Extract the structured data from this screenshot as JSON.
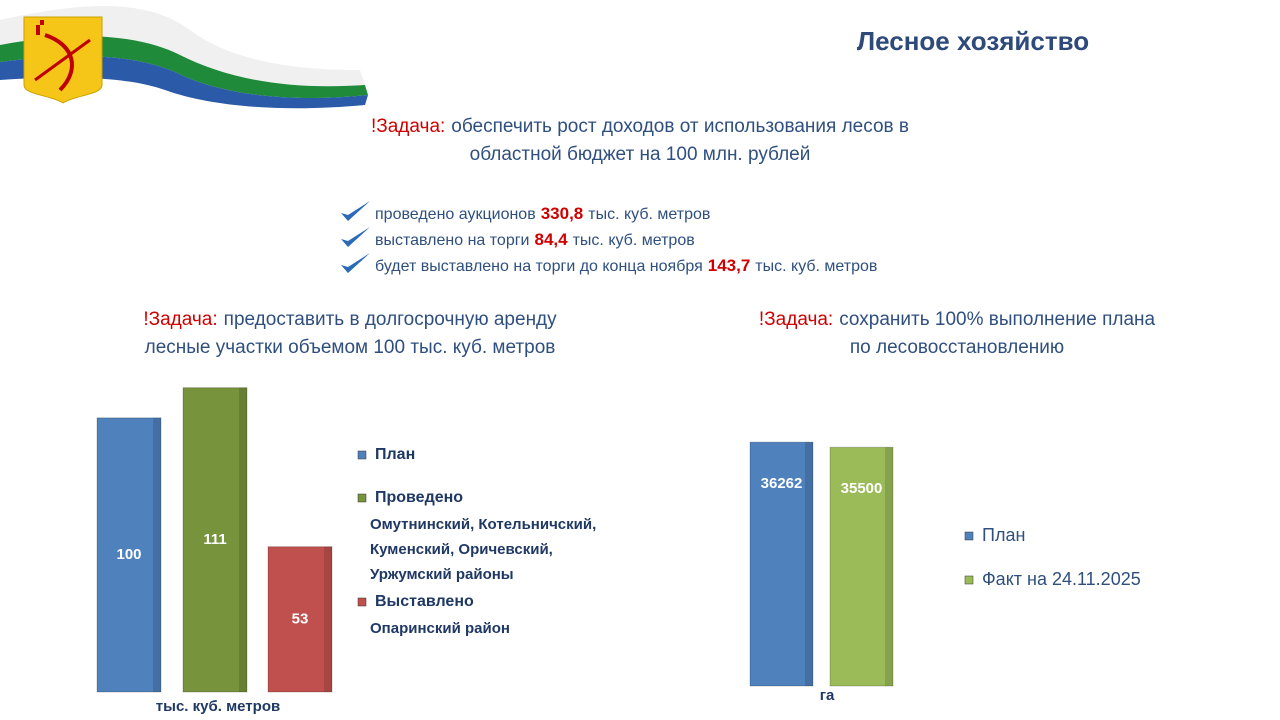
{
  "header": {
    "title": "Лесное хозяйство"
  },
  "tasks": [
    {
      "label": "!Задача:",
      "lines": [
        "обеспечить рост доходов от использования лесов в",
        "областной бюджет на 100 млн. рублей"
      ]
    },
    {
      "label": "!Задача:",
      "lines": [
        "предоставить в долгосрочную аренду",
        "лесные участки объемом 100 тыс. куб. метров"
      ]
    },
    {
      "label": "!Задача:",
      "lines": [
        "сохранить 100% выполнение плана",
        "по лесовосстановлению"
      ]
    }
  ],
  "results": [
    {
      "text": "проведено аукционов",
      "amount": "330,8",
      "unit": "тыс. куб. метров"
    },
    {
      "text": "выставлено на торги",
      "amount": "84,4",
      "unit": "тыс. куб. метров"
    },
    {
      "text": "будет выставлено на торги до конца ноября",
      "amount": "143,7",
      "unit": "тыс. куб. метров"
    }
  ],
  "chart_data": [
    {
      "type": "bar",
      "x_label": "тыс. куб. метров",
      "ylim": [
        0,
        120
      ],
      "series": [
        {
          "name": "План",
          "color": "#4f81bd",
          "values": [
            100
          ]
        },
        {
          "name": "Проведено",
          "color": "#77933c",
          "values": [
            111
          ],
          "note": [
            "Омутнинский, Котельничский,",
            "Куменский, Оричевский,",
            "Уржумский районы"
          ]
        },
        {
          "name": "Выставлено",
          "color": "#c0504d",
          "values": [
            53
          ],
          "note": [
            "Опаринский район"
          ]
        }
      ]
    },
    {
      "type": "bar",
      "x_label": "га",
      "ylim": [
        0,
        40000
      ],
      "series": [
        {
          "name": "План",
          "color": "#4f81bd",
          "values": [
            36262
          ]
        },
        {
          "name": "Факт на 24.11.2025",
          "color": "#9bbb59",
          "values": [
            35500
          ]
        }
      ]
    }
  ]
}
